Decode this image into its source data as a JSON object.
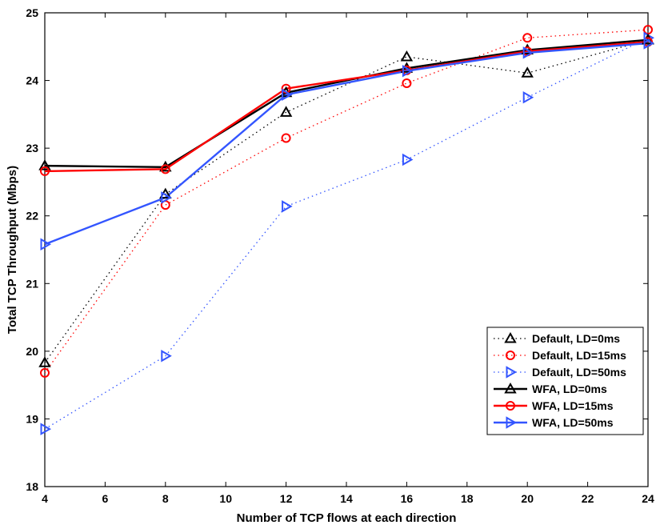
{
  "chart_data": {
    "type": "line",
    "xlabel": "Number of TCP flows at each direction",
    "ylabel": "Total TCP Throughput (Mbps)",
    "xlim": [
      4,
      24
    ],
    "ylim": [
      18,
      25
    ],
    "xticks": [
      4,
      6,
      8,
      10,
      12,
      14,
      16,
      18,
      20,
      22,
      24
    ],
    "yticks": [
      18,
      19,
      20,
      21,
      22,
      23,
      24,
      25
    ],
    "grid": false,
    "legend_position": "bottom-right",
    "x": [
      4,
      8,
      12,
      16,
      20,
      24
    ],
    "series": [
      {
        "name": "Default, LD=0ms",
        "color": "#000000",
        "style": "dotted",
        "marker": "triangle-up",
        "values": [
          19.83,
          22.32,
          23.53,
          24.35,
          24.11,
          24.6
        ]
      },
      {
        "name": "Default, LD=15ms",
        "color": "#ff0000",
        "style": "dotted",
        "marker": "circle",
        "values": [
          19.68,
          22.16,
          23.15,
          23.96,
          24.63,
          24.75
        ]
      },
      {
        "name": "Default, LD=50ms",
        "color": "#3355ff",
        "style": "dotted",
        "marker": "triangle-right",
        "values": [
          18.85,
          19.93,
          22.14,
          22.83,
          23.75,
          24.63
        ]
      },
      {
        "name": "WFA, LD=0ms",
        "color": "#000000",
        "style": "solid",
        "marker": "triangle-up",
        "values": [
          22.74,
          22.72,
          23.82,
          24.18,
          24.45,
          24.6
        ]
      },
      {
        "name": "WFA, LD=15ms",
        "color": "#ff0000",
        "style": "solid",
        "marker": "circle",
        "values": [
          22.66,
          22.69,
          23.88,
          24.15,
          24.43,
          24.57
        ]
      },
      {
        "name": "WFA, LD=50ms",
        "color": "#3355ff",
        "style": "solid",
        "marker": "triangle-right",
        "values": [
          21.58,
          22.27,
          23.79,
          24.14,
          24.41,
          24.55
        ]
      }
    ]
  }
}
